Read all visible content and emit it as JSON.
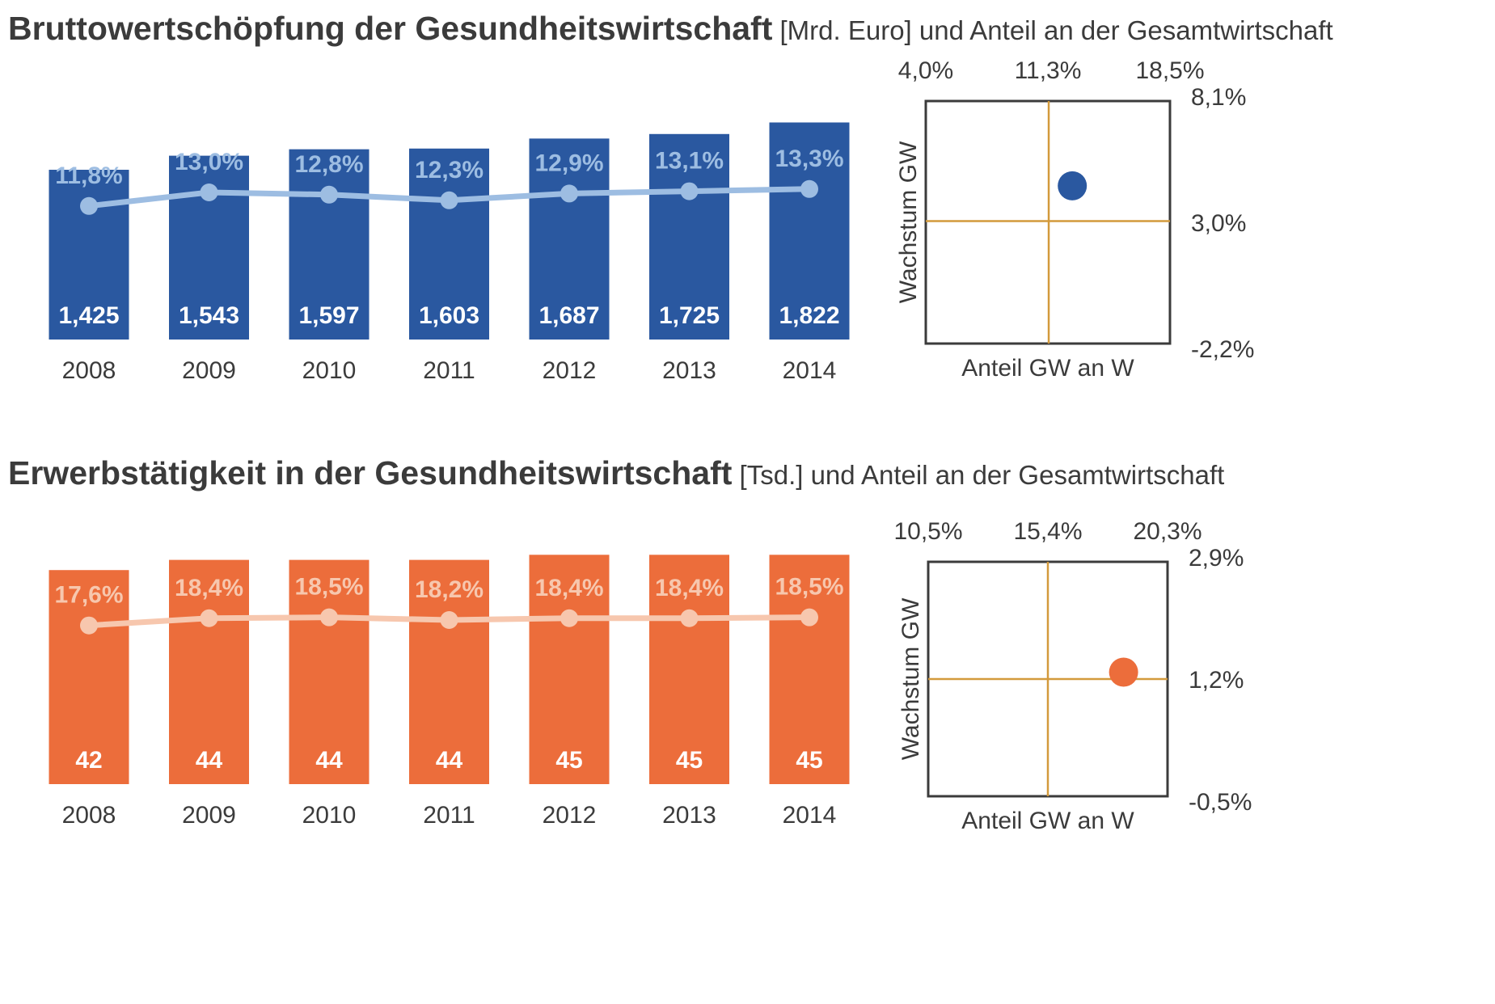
{
  "colors": {
    "blue_bar": "#2a58a0",
    "blue_line": "#9dbde2",
    "orange_bar": "#ec6d3b",
    "orange_line": "#f7c7ae",
    "quad_line": "#d39a3c",
    "text": "#3b3b3b"
  },
  "sections": [
    {
      "title_bold": "Bruttowertschöpfung der Gesundheitswirtschaft",
      "title_rest": " [Mrd. Euro] und Anteil an der Gesamtwirtschaft"
    },
    {
      "title_bold": "Erwerbstätigkeit in der Gesundheitswirtschaft",
      "title_rest": " [Tsd.] und Anteil an der Gesamtwirtschaft"
    }
  ],
  "chart_data": [
    {
      "type": "bar",
      "title": "Bruttowertschöpfung der Gesundheitswirtschaft [Mrd. Euro] und Anteil an der Gesamtwirtschaft",
      "categories": [
        "2008",
        "2009",
        "2010",
        "2011",
        "2012",
        "2013",
        "2014"
      ],
      "series": [
        {
          "name": "Bruttowertschöpfung",
          "kind": "bar",
          "values": [
            1425,
            1543,
            1597,
            1603,
            1687,
            1725,
            1822
          ],
          "labels": [
            "1,425",
            "1,543",
            "1,597",
            "1,603",
            "1,687",
            "1,725",
            "1,822"
          ]
        },
        {
          "name": "Anteil an der Gesamtwirtschaft",
          "kind": "line",
          "values": [
            11.8,
            13.0,
            12.8,
            12.3,
            12.9,
            13.1,
            13.3
          ],
          "labels": [
            "11,8%",
            "13,0%",
            "12,8%",
            "12,3%",
            "12,9%",
            "13,1%",
            "13,3%"
          ]
        }
      ],
      "bar_color": "#2a58a0",
      "line_color": "#9dbde2",
      "ylim_bar": [
        0,
        1900
      ],
      "ylim_line": [
        0,
        20
      ]
    },
    {
      "type": "scatter",
      "xlabel": "Anteil GW an W",
      "ylabel": "Wachstum GW",
      "x_ticks": [
        "4,0%",
        "11,3%",
        "18,5%"
      ],
      "y_ticks": [
        "8,1%",
        "3,0%",
        "-2,2%"
      ],
      "xlim": [
        4.0,
        18.5
      ],
      "ylim": [
        -2.2,
        8.1
      ],
      "x_mid": 11.3,
      "y_mid": 3.0,
      "points": [
        {
          "x": 12.7,
          "y": 4.5
        }
      ],
      "point_color": "#2a58a0"
    },
    {
      "type": "bar",
      "title": "Erwerbstätigkeit in der Gesundheitswirtschaft [Tsd.] und Anteil an der Gesamtwirtschaft",
      "categories": [
        "2008",
        "2009",
        "2010",
        "2011",
        "2012",
        "2013",
        "2014"
      ],
      "series": [
        {
          "name": "Erwerbstätigkeit",
          "kind": "bar",
          "values": [
            42,
            44,
            44,
            44,
            45,
            45,
            45
          ],
          "labels": [
            "42",
            "44",
            "44",
            "44",
            "45",
            "45",
            "45"
          ]
        },
        {
          "name": "Anteil an der Gesamtwirtschaft",
          "kind": "line",
          "values": [
            17.6,
            18.4,
            18.5,
            18.2,
            18.4,
            18.4,
            18.5
          ],
          "labels": [
            "17,6%",
            "18,4%",
            "18,5%",
            "18,2%",
            "18,4%",
            "18,4%",
            "18,5%"
          ]
        }
      ],
      "bar_color": "#ec6d3b",
      "line_color": "#f7c7ae",
      "ylim_bar": [
        0,
        46
      ],
      "ylim_line": [
        0,
        26
      ]
    },
    {
      "type": "scatter",
      "xlabel": "Anteil GW an W",
      "ylabel": "Wachstum GW",
      "x_ticks": [
        "10,5%",
        "15,4%",
        "20,3%"
      ],
      "y_ticks": [
        "2,9%",
        "1,2%",
        "-0,5%"
      ],
      "xlim": [
        10.5,
        20.3
      ],
      "ylim": [
        -0.5,
        2.9
      ],
      "x_mid": 15.4,
      "y_mid": 1.2,
      "points": [
        {
          "x": 18.5,
          "y": 1.3
        }
      ],
      "point_color": "#ec6d3b"
    }
  ]
}
